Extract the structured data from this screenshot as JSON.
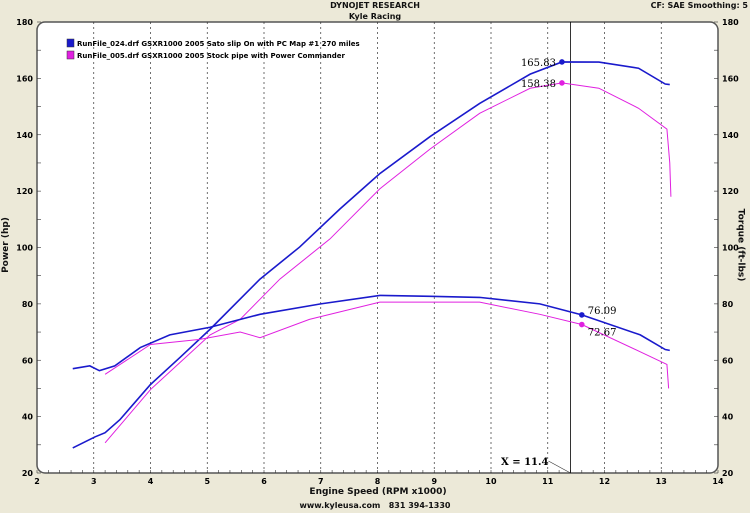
{
  "header": {
    "title": "DYNOJET RESEARCH",
    "subtitle": "Kyle Racing",
    "settings": "CF: SAE  Smoothing: 5"
  },
  "footer": {
    "contact": "www.kyleusa.com   831 394-1330"
  },
  "chart_data": {
    "type": "line",
    "title": "DYNOJET RESEARCH",
    "subtitle": "Kyle Racing",
    "xlabel": "Engine Speed (RPM x1000)",
    "ylabel": "Power (hp)",
    "y2label": "Torque (ft-lbs)",
    "xlim": [
      2,
      14
    ],
    "ylim": [
      20,
      180
    ],
    "y2lim": [
      20,
      180
    ],
    "xticks": [
      "2",
      "3",
      "4",
      "5",
      "6",
      "7",
      "8",
      "9",
      "10",
      "11",
      "12",
      "13",
      "14"
    ],
    "yticks": [
      "20",
      "40",
      "60",
      "80",
      "100",
      "120",
      "140",
      "160",
      "180"
    ],
    "grid": "vertical dashed",
    "legend_position": "top-left",
    "cursor": {
      "x": 11.4,
      "label": "X = 11.4"
    },
    "series": [
      {
        "name": "RunFile_024.drf GSXR1000 2005 Sato slip On with PC Map #1  270 miles",
        "color": "#1a1acc",
        "measure": "power",
        "x": [
          2.63,
          3.02,
          3.2,
          3.46,
          4.0,
          4.52,
          5.05,
          5.93,
          6.63,
          7.34,
          8.04,
          8.93,
          9.8,
          10.69,
          11.25,
          11.9,
          12.6,
          13.07,
          13.15
        ],
        "y": [
          28.9,
          32.8,
          34.3,
          38.9,
          51.4,
          61,
          71,
          88.8,
          100.2,
          113.7,
          126.2,
          139.4,
          151.1,
          161.5,
          165.83,
          165.8,
          163.6,
          158,
          157.8
        ],
        "marker": {
          "x": 11.25,
          "label": "165.83"
        }
      },
      {
        "name": "RunFile_005.drf GSXR1000 2005 Stock pipe with Power Commander",
        "color": "#e020e0",
        "measure": "power",
        "x": [
          3.2,
          4.0,
          5.05,
          5.58,
          6.28,
          7.16,
          8.04,
          8.93,
          9.8,
          10.69,
          11.25,
          11.9,
          12.6,
          13.1,
          13.15,
          13.17
        ],
        "y": [
          30.7,
          49.6,
          69,
          74.5,
          88.8,
          103,
          120.8,
          135,
          147.6,
          156.5,
          158.38,
          156.5,
          149.4,
          142,
          130,
          118
        ],
        "marker": {
          "x": 11.25,
          "label": "158.38"
        }
      },
      {
        "name": "RunFile_024.drf GSXR1000 2005 Sato slip On with PC Map #1  270 miles",
        "color": "#1a1acc",
        "measure": "torque",
        "x": [
          2.63,
          2.93,
          3.1,
          3.37,
          3.82,
          4.34,
          5.05,
          5.93,
          7.0,
          8.04,
          8.93,
          9.8,
          10.86,
          11.6,
          12.63,
          13.07,
          13.15
        ],
        "y": [
          57,
          58,
          56.3,
          58,
          64.5,
          69,
          71.7,
          76.3,
          80,
          83,
          82.7,
          82.3,
          80,
          76.09,
          69,
          63.8,
          63.5
        ],
        "marker": {
          "x": 11.6,
          "label": "76.09"
        }
      },
      {
        "name": "RunFile_005.drf GSXR1000 2005 Stock pipe with Power Commander",
        "color": "#e020e0",
        "measure": "torque",
        "x": [
          3.2,
          4.0,
          4.87,
          5.58,
          5.93,
          6.8,
          8.04,
          9.8,
          10.86,
          11.6,
          12.63,
          13.1,
          13.13
        ],
        "y": [
          55,
          65.6,
          67.4,
          70,
          68,
          74.5,
          80.6,
          80.6,
          76.3,
          72.67,
          63,
          58.5,
          50
        ],
        "marker": {
          "x": 11.6,
          "label": "72.67"
        }
      }
    ]
  }
}
